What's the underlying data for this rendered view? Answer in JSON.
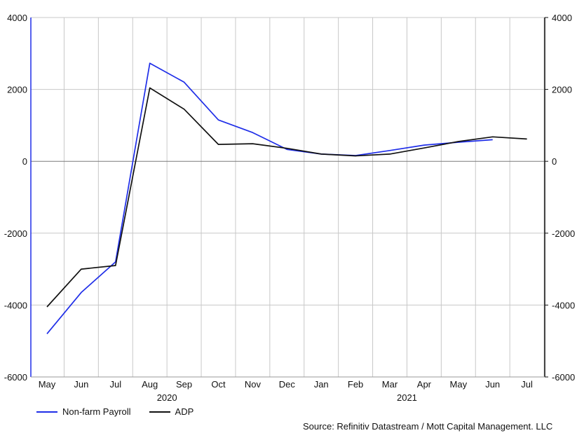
{
  "chart_data": {
    "type": "line",
    "x": [
      "May",
      "Jun",
      "Jul",
      "Aug",
      "Sep",
      "Oct",
      "Nov",
      "Dec",
      "Jan",
      "Feb",
      "Mar",
      "Apr",
      "May",
      "Jun",
      "Jul"
    ],
    "year_labels": [
      {
        "label": "2020",
        "at_index": 3.5
      },
      {
        "label": "2021",
        "at_index": 10.5
      }
    ],
    "ylim": [
      -6000,
      4000
    ],
    "yticks": [
      "4000",
      "2000",
      "0",
      "-2000",
      "-4000",
      "-6000"
    ],
    "ytick_values": [
      4000,
      2000,
      0,
      -2000,
      -4000,
      -6000
    ],
    "grid": true,
    "legend_position": "bottom-left",
    "series": [
      {
        "name": "Non-farm Payroll",
        "color": "#1f2ee8",
        "values": [
          -4800,
          -3650,
          -2800,
          2730,
          2200,
          1150,
          800,
          330,
          200,
          160,
          300,
          450,
          530,
          600,
          null
        ]
      },
      {
        "name": "ADP",
        "color": "#111111",
        "values": [
          -4050,
          -3000,
          -2900,
          2040,
          1450,
          470,
          490,
          360,
          200,
          150,
          200,
          370,
          550,
          680,
          620
        ]
      }
    ],
    "source": "Source: Refinitiv Datastream / Mott Capital Management. LLC"
  }
}
